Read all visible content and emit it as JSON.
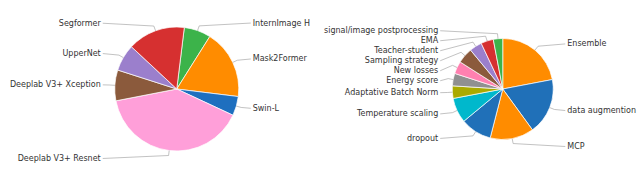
{
  "chart_data": [
    {
      "type": "pie",
      "categories": [
        "InternImage H",
        "Mask2Former",
        "Swin-L",
        "Deeplab V3+ Resnet",
        "Deeplab V3+ Xception",
        "UpperNet",
        "Segformer"
      ],
      "values": [
        7,
        18,
        5,
        40,
        8,
        7,
        15
      ],
      "colors": [
        "#3CB34A",
        "#FF8C00",
        "#1E6FBF",
        "#FF9FD9",
        "#8B5A3C",
        "#9B7FCC",
        "#D63030"
      ]
    },
    {
      "type": "pie",
      "categories": [
        "Ensemble",
        "data augmention",
        "MCP",
        "dropout",
        "Temperature scaling",
        "Adaptative Batch Norm",
        "Energy score",
        "New losses",
        "Sampling strategy",
        "Teacher-student",
        "EMA",
        "signal/image postprocessing"
      ],
      "values": [
        22,
        18,
        14,
        10,
        8,
        4,
        4,
        4,
        5,
        4,
        4,
        3
      ],
      "colors": [
        "#FF8C00",
        "#2070B8",
        "#FF8C00",
        "#2070B8",
        "#00B8CC",
        "#AAAA00",
        "#909090",
        "#FF80B0",
        "#8B5A3C",
        "#9B7FCC",
        "#D63030",
        "#3CB34A"
      ]
    }
  ]
}
